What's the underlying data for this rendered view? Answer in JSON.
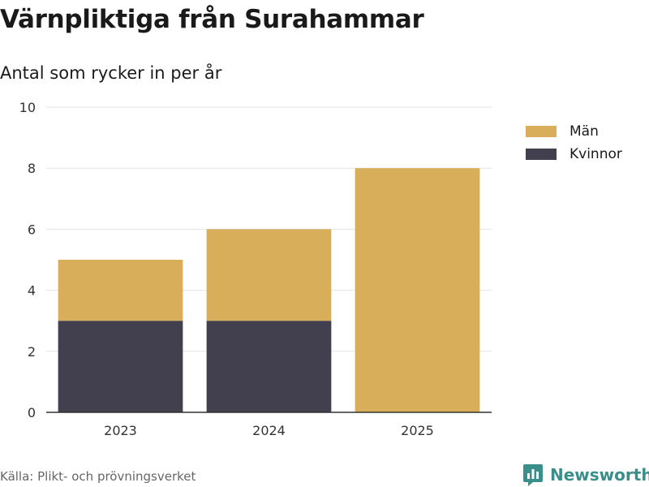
{
  "header": {
    "title": "Värnpliktiga från Surahammar",
    "subtitle": "Antal som rycker in per år"
  },
  "chart_data": {
    "type": "bar",
    "stacked": true,
    "categories": [
      "2023",
      "2024",
      "2025"
    ],
    "series": [
      {
        "name": "Kvinnor",
        "values": [
          3,
          3,
          0
        ],
        "color": "#42404f"
      },
      {
        "name": "Män",
        "values": [
          2,
          3,
          8
        ],
        "color": "#d9ae5a"
      }
    ],
    "ylim": [
      0,
      10
    ],
    "yticks": [
      0,
      2,
      4,
      6,
      8,
      10
    ],
    "grid": true,
    "legend_position": "top-right"
  },
  "legend": {
    "items": [
      {
        "label": "Män",
        "color": "#d9ae5a"
      },
      {
        "label": "Kvinnor",
        "color": "#42404f"
      }
    ]
  },
  "footer": {
    "source": "Källa: Plikt- och prövningsverket",
    "brand": "Newsworthy",
    "brand_icon": "bar-chart-logo-icon"
  }
}
